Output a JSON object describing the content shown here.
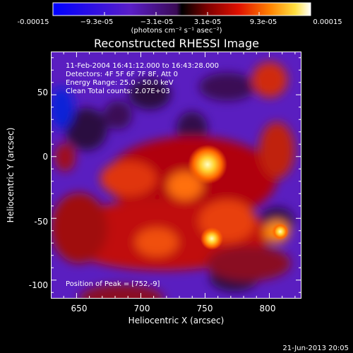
{
  "chart_data": {
    "type": "heatmap",
    "title": "Reconstructed RHESSI Image",
    "xlabel": "Heliocentric X (arcsec)",
    "ylabel": "Heliocentric Y (arcsec)",
    "xlim": [
      630,
      825
    ],
    "ylim": [
      -115,
      85
    ],
    "x_ticks": [
      "650",
      "700",
      "750",
      "800"
    ],
    "y_ticks": [
      "50",
      "0",
      "-50",
      "-100"
    ],
    "colorbar": {
      "ticks": [
        "-0.00015",
        "−9.3e-05",
        "−3.1e-05",
        "3.1e-05",
        "9.3e-05",
        "0.00015"
      ],
      "units": "(photons cm⁻² s⁻¹ asec⁻²)",
      "range": [
        -0.00015,
        0.00015
      ]
    },
    "annotations": {
      "time_range": "11-Feb-2004 16:41:12.000 to 16:43:28.000",
      "detectors": "Detectors: 4F 5F 6F 7F 8F, Att 0",
      "energy_range": "Energy Range: 25.0 - 50.0 keV",
      "clean_counts": "Clean     Total counts: 2.07E+03",
      "peak_position": "Position of Peak = [752,-9]"
    },
    "peak": [
      752,
      -9
    ]
  },
  "footer": {
    "date": "21-Jun-2013 20:05"
  }
}
